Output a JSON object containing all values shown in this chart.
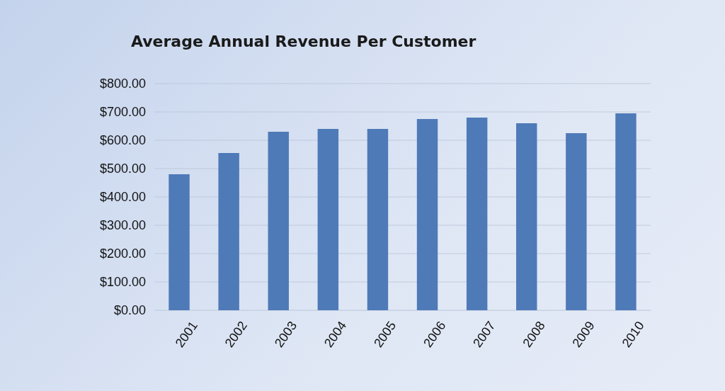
{
  "chart_data": {
    "type": "bar",
    "title": "Average Annual Revenue Per Customer",
    "categories": [
      "2001",
      "2002",
      "2003",
      "2004",
      "2005",
      "2006",
      "2007",
      "2008",
      "2009",
      "2010"
    ],
    "values": [
      480,
      555,
      630,
      640,
      640,
      675,
      680,
      660,
      625,
      695
    ],
    "color": "#4f7ab8",
    "ylim": [
      0,
      800
    ],
    "yticks": [
      {
        "value": 0,
        "label": "$0.00"
      },
      {
        "value": 100,
        "label": "$100.00"
      },
      {
        "value": 200,
        "label": "$200.00"
      },
      {
        "value": 300,
        "label": "$300.00"
      },
      {
        "value": 400,
        "label": "$400.00"
      },
      {
        "value": 500,
        "label": "$500.00"
      },
      {
        "value": 600,
        "label": "$600.00"
      },
      {
        "value": 700,
        "label": "$700.00"
      },
      {
        "value": 800,
        "label": "$800.00"
      }
    ],
    "grid": "y"
  }
}
